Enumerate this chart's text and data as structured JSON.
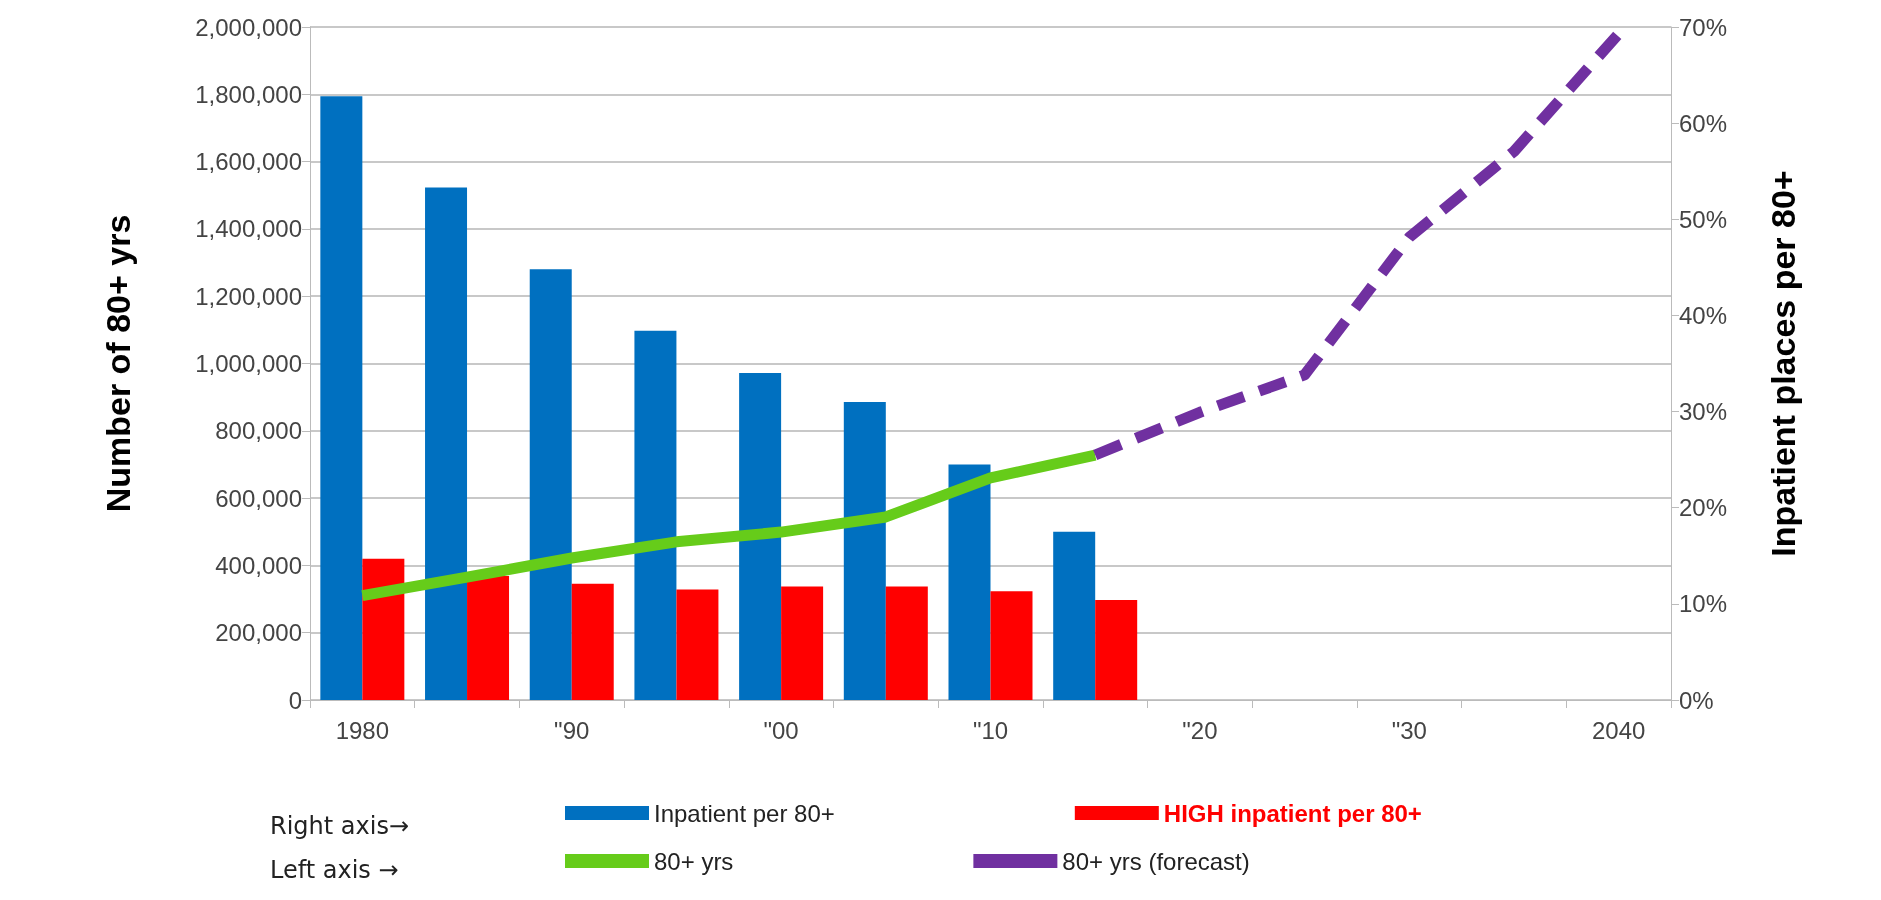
{
  "chart_data": {
    "type": "bar",
    "ylabel": "Number of 80+ yrs",
    "y2label": "Inpatient places per 80+",
    "categories": [
      "1980",
      null,
      "\"90",
      null,
      "\"00",
      null,
      "\"10",
      null,
      "\"20",
      null,
      "\"30",
      null,
      "2040"
    ],
    "series": [
      {
        "name": "Inpatient per 80+",
        "axis": "y2",
        "color": "#0070c0",
        "values": [
          62.8,
          53.3,
          44.8,
          38.4,
          34,
          31,
          24.5,
          17.5,
          null,
          null,
          null,
          null,
          null
        ]
      },
      {
        "name": "HIGH inpatient per 80+",
        "axis": "y2",
        "color": "#ff0000",
        "values": [
          14.7,
          12.9,
          12.1,
          11.5,
          11.8,
          11.8,
          11.3,
          10.4,
          null,
          null,
          null,
          null,
          null
        ]
      },
      {
        "name": "80+ yrs",
        "type": "line",
        "color": "#66cc1a",
        "line_style": "solid",
        "values": [
          310000,
          365000,
          422000,
          470000,
          499000,
          544000,
          660000,
          728000,
          null,
          null,
          null,
          null,
          null
        ]
      },
      {
        "name": "80+ yrs (forecast)",
        "type": "line",
        "color": "#7030a0",
        "line_style": "dashed",
        "values": [
          null,
          null,
          null,
          null,
          null,
          null,
          null,
          728000,
          855000,
          966000,
          1375000,
          1630000,
          1980000
        ]
      }
    ],
    "ylim": [
      0,
      2000000
    ],
    "yticks": [
      0,
      {
        "value": 200000,
        "label": "200,000"
      },
      {
        "value": 400000,
        "label": "400,000"
      },
      {
        "value": 600000,
        "label": "600,000"
      },
      {
        "value": 800000,
        "label": "800,000"
      },
      {
        "value": 1000000,
        "label": "1,000,000"
      },
      {
        "value": 1200000,
        "label": "1,200,000"
      },
      {
        "value": 1400000,
        "label": "1,400,000"
      },
      {
        "value": 1600000,
        "label": "1,600,000"
      },
      {
        "value": 1800000,
        "label": "1,800,000"
      },
      {
        "value": 2000000,
        "label": "2,000,000"
      }
    ],
    "y2lim": [
      0,
      70
    ],
    "y2ticks": [
      {
        "value": 0,
        "label": "0%"
      },
      {
        "value": 10,
        "label": "10%"
      },
      {
        "value": 20,
        "label": "20%"
      },
      {
        "value": 30,
        "label": "30%"
      },
      {
        "value": 40,
        "label": "40%"
      },
      {
        "value": 50,
        "label": "50%"
      },
      {
        "value": 60,
        "label": "60%"
      },
      {
        "value": 70,
        "label": "70%"
      }
    ],
    "grid": "y",
    "legend": "bottom",
    "annotations": [
      "Right axis→",
      "Left axis →"
    ]
  }
}
